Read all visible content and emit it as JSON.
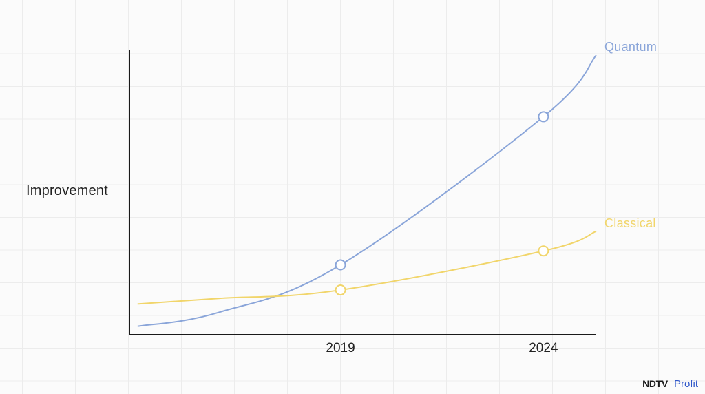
{
  "chart_data": {
    "type": "line",
    "xlabel": "",
    "ylabel": "Improvement",
    "x_ticks": [
      "2019",
      "2024"
    ],
    "x": [
      2014,
      2016,
      2019,
      2024,
      2025.3
    ],
    "series": [
      {
        "name": "Quantum",
        "color": "#8aa5d9",
        "values": [
          0.3,
          0.8,
          2.5,
          7.8,
          10.0
        ],
        "markers": [
          {
            "x": 2019,
            "y": 2.5
          },
          {
            "x": 2024,
            "y": 7.8
          }
        ]
      },
      {
        "name": "Classical",
        "color": "#f1d56a",
        "values": [
          1.1,
          1.3,
          1.6,
          3.0,
          3.7
        ],
        "markers": [
          {
            "x": 2019,
            "y": 1.6
          },
          {
            "x": 2024,
            "y": 3.0
          }
        ]
      }
    ],
    "xlim": [
      2013.8,
      2025.3
    ],
    "ylim": [
      0,
      10.2
    ],
    "grid": true,
    "legend": "inline-end-of-lines"
  },
  "watermark": {
    "brand": "NDTV",
    "sub": "Profit"
  }
}
